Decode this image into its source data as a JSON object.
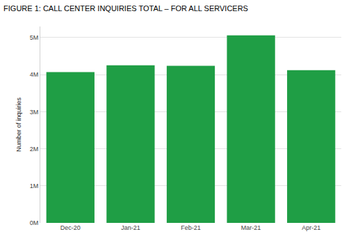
{
  "chart_data": {
    "type": "bar",
    "title": "FIGURE 1: CALL CENTER INQUIRIES TOTAL – FOR ALL SERVICERS",
    "y_label": "Number of inquiries",
    "categories": [
      "Dec-20",
      "Jan-21",
      "Feb-21",
      "Mar-21",
      "Apr-21"
    ],
    "values": [
      4070000,
      4250000,
      4240000,
      5060000,
      4120000
    ],
    "color": "#1f9e45",
    "ylim": [
      0,
      5300000
    ],
    "yticks": [
      {
        "value": 0,
        "label": "0M"
      },
      {
        "value": 1000000,
        "label": "1M"
      },
      {
        "value": 2000000,
        "label": "2M"
      },
      {
        "value": 3000000,
        "label": "3M"
      },
      {
        "value": 4000000,
        "label": "4M"
      },
      {
        "value": 5000000,
        "label": "5M"
      }
    ],
    "grid": true
  }
}
